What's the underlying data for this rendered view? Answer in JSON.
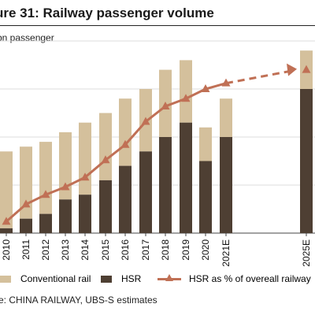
{
  "title": "ure 31: Railway passenger volume",
  "source": "e:  CHINA RAILWAY, UBS-S estimates",
  "colors": {
    "conventional": "#d4c09c",
    "hsr": "#4e3f33",
    "line": "#c07055"
  },
  "chart_data": {
    "type": "bar",
    "stacked": true,
    "ylabel": "bn passenger",
    "categories": [
      "2010",
      "2011",
      "2012",
      "2013",
      "2014",
      "2015",
      "2016",
      "2017",
      "2018",
      "2019",
      "2020",
      "2021E",
      "2025E"
    ],
    "series": [
      {
        "name": "HSR",
        "values": [
          0.1,
          0.3,
          0.4,
          0.7,
          0.8,
          1.1,
          1.4,
          1.7,
          2.0,
          2.3,
          1.5,
          2.0,
          3.0
        ]
      },
      {
        "name": "Conventional rail",
        "values": [
          1.6,
          1.5,
          1.5,
          1.4,
          1.5,
          1.4,
          1.4,
          1.3,
          1.4,
          1.3,
          0.7,
          0.8,
          0.8
        ]
      }
    ],
    "line_series": {
      "name": "HSR as % of overeall railway",
      "axis": "secondary",
      "values": [
        6,
        15,
        20,
        24,
        29,
        38,
        46,
        58,
        66,
        70,
        75,
        78,
        85
      ],
      "projected_from": "2021E"
    },
    "ylim": [
      0,
      4.0
    ],
    "y2lim": [
      0,
      100
    ],
    "grid": true,
    "legend_position": "bottom"
  },
  "legend": {
    "conventional": "Conventional rail",
    "hsr": "HSR",
    "line": "HSR as % of overeall railway"
  }
}
